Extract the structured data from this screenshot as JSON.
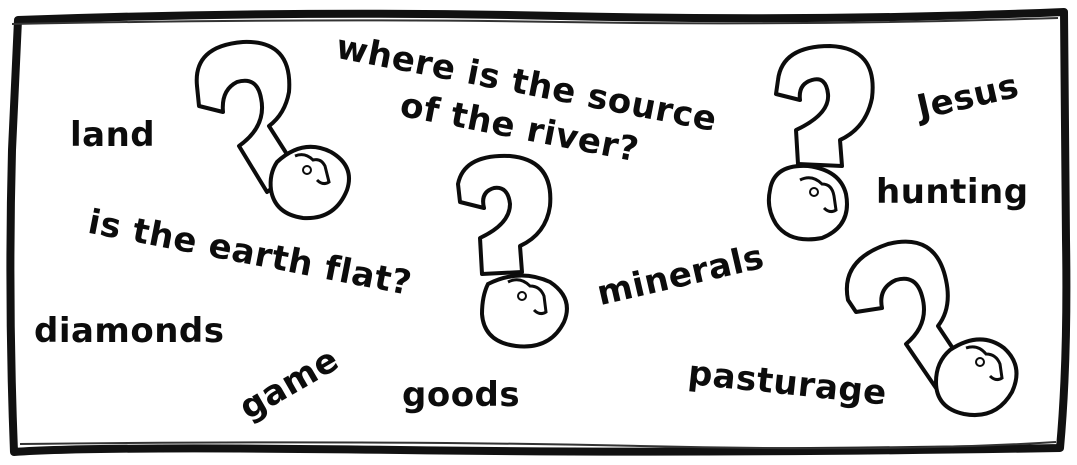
{
  "words": {
    "where_is_source_line1": "where is the source",
    "where_is_source_line2": "of the river?",
    "land": "land",
    "jesus": "Jesus",
    "hunting": "hunting",
    "earth_flat": "is the earth flat?",
    "minerals": "minerals",
    "diamonds": "diamonds",
    "game": "game",
    "goods": "goods",
    "pasturage": "pasturage"
  },
  "icons": [
    "question-head-icon",
    "question-head-icon",
    "question-head-icon",
    "question-head-icon"
  ],
  "colors": {
    "ink": "#0c0c0c",
    "background": "#ffffff"
  }
}
